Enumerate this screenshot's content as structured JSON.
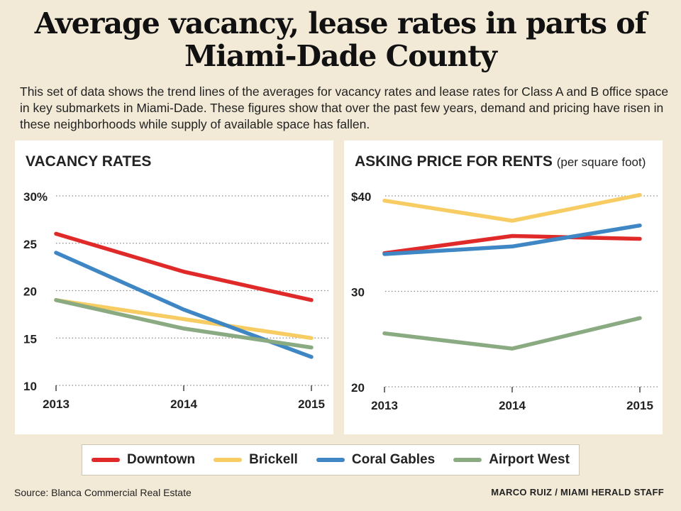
{
  "title_line1": "Average vacancy, lease rates in parts of",
  "title_line2": "Miami-Dade County",
  "description": "This set of data shows the trend lines of the averages for vacancy rates and lease rates for Class A and B office space in key submarkets in Miami-Dade. These figures show that over the past few years, demand and pricing have risen in these neighborhoods while supply of available space has fallen.",
  "source": "Source: Blanca Commercial Real Estate",
  "credit": "MARCO RUIZ / MIAMI HERALD STAFF",
  "legend": [
    {
      "name": "Downtown",
      "color": "#e02a2a"
    },
    {
      "name": "Brickell",
      "color": "#f6cc63"
    },
    {
      "name": "Coral Gables",
      "color": "#3f86c4"
    },
    {
      "name": "Airport West",
      "color": "#8aaa82"
    }
  ],
  "chart_data": [
    {
      "type": "line",
      "title": "VACANCY RATES",
      "subtitle": "",
      "x": [
        "2013",
        "2014",
        "2015"
      ],
      "ylim": [
        10,
        30
      ],
      "yticks": [
        "10",
        "15",
        "20",
        "25",
        "30%"
      ],
      "grid": true,
      "series": [
        {
          "name": "Downtown",
          "color": "#e02a2a",
          "values": [
            26,
            22,
            19
          ]
        },
        {
          "name": "Brickell",
          "color": "#f6cc63",
          "values": [
            19,
            17,
            15
          ]
        },
        {
          "name": "Coral Gables",
          "color": "#3f86c4",
          "values": [
            24,
            18,
            13
          ]
        },
        {
          "name": "Airport West",
          "color": "#8aaa82",
          "values": [
            19,
            16,
            14
          ]
        }
      ]
    },
    {
      "type": "line",
      "title": "ASKING PRICE FOR RENTS",
      "subtitle": "(per square foot)",
      "x": [
        "2013",
        "2014",
        "2015"
      ],
      "ylim": [
        20,
        40
      ],
      "yticks": [
        "20",
        "30",
        "$40"
      ],
      "grid": true,
      "series": [
        {
          "name": "Downtown",
          "color": "#e02a2a",
          "values": [
            34.0,
            35.8,
            35.5
          ]
        },
        {
          "name": "Brickell",
          "color": "#f6cc63",
          "values": [
            39.5,
            37.4,
            40.1
          ]
        },
        {
          "name": "Coral Gables",
          "color": "#3f86c4",
          "values": [
            33.9,
            34.7,
            36.9
          ]
        },
        {
          "name": "Airport West",
          "color": "#8aaa82",
          "values": [
            25.6,
            24.0,
            27.2
          ]
        }
      ]
    }
  ]
}
